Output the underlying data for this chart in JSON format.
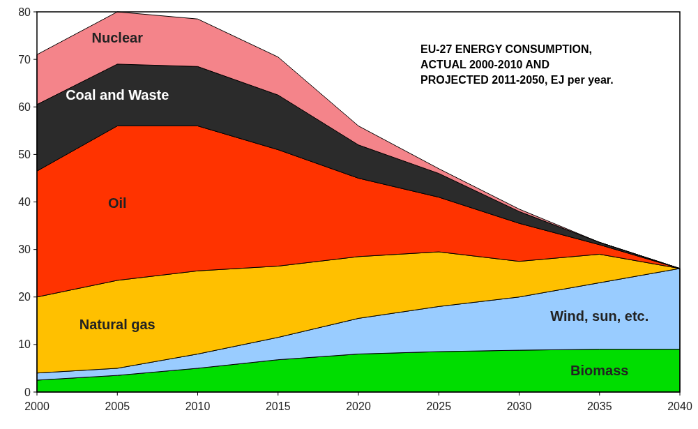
{
  "chart_data": {
    "type": "area",
    "stacked": true,
    "title": "EU-27 ENERGY CONSUMPTION,\nACTUAL 2000-2010 AND\nPROJECTED 2011-2050, EJ per year.",
    "x": [
      2000,
      2005,
      2010,
      2015,
      2020,
      2025,
      2030,
      2035,
      2040
    ],
    "series": [
      {
        "name": "Biomass",
        "color": "#00dd00",
        "values": [
          2.5,
          3.5,
          5,
          6.8,
          8,
          8.5,
          8.8,
          9,
          9
        ]
      },
      {
        "name": "Wind, sun, etc.",
        "color": "#99ccff",
        "values": [
          1.5,
          1.5,
          3,
          4.7,
          7.5,
          9.5,
          11.2,
          14,
          17
        ]
      },
      {
        "name": "Natural gas",
        "color": "#ffc000",
        "values": [
          16,
          18.5,
          17.5,
          15,
          13,
          11.5,
          7.5,
          6,
          0
        ]
      },
      {
        "name": "Oil",
        "color": "#ff3300",
        "values": [
          26.5,
          32.5,
          30.5,
          24.5,
          16.5,
          11.5,
          8,
          2,
          0
        ]
      },
      {
        "name": "Coal and Waste",
        "color": "#2b2b2b",
        "values": [
          14,
          13,
          12.5,
          11.5,
          7,
          5,
          2.5,
          0.5,
          0
        ]
      },
      {
        "name": "Nuclear",
        "color": "#f4848a",
        "values": [
          10.5,
          11,
          10,
          8,
          4,
          1,
          0.5,
          0,
          0
        ]
      }
    ],
    "xlim": [
      2000,
      2040
    ],
    "xticks": [
      2000,
      2005,
      2010,
      2015,
      2020,
      2025,
      2030,
      2035,
      2040
    ],
    "ylim": [
      0,
      80
    ],
    "yticks": [
      0,
      10,
      20,
      30,
      40,
      50,
      60,
      70,
      80
    ],
    "grid": false
  }
}
